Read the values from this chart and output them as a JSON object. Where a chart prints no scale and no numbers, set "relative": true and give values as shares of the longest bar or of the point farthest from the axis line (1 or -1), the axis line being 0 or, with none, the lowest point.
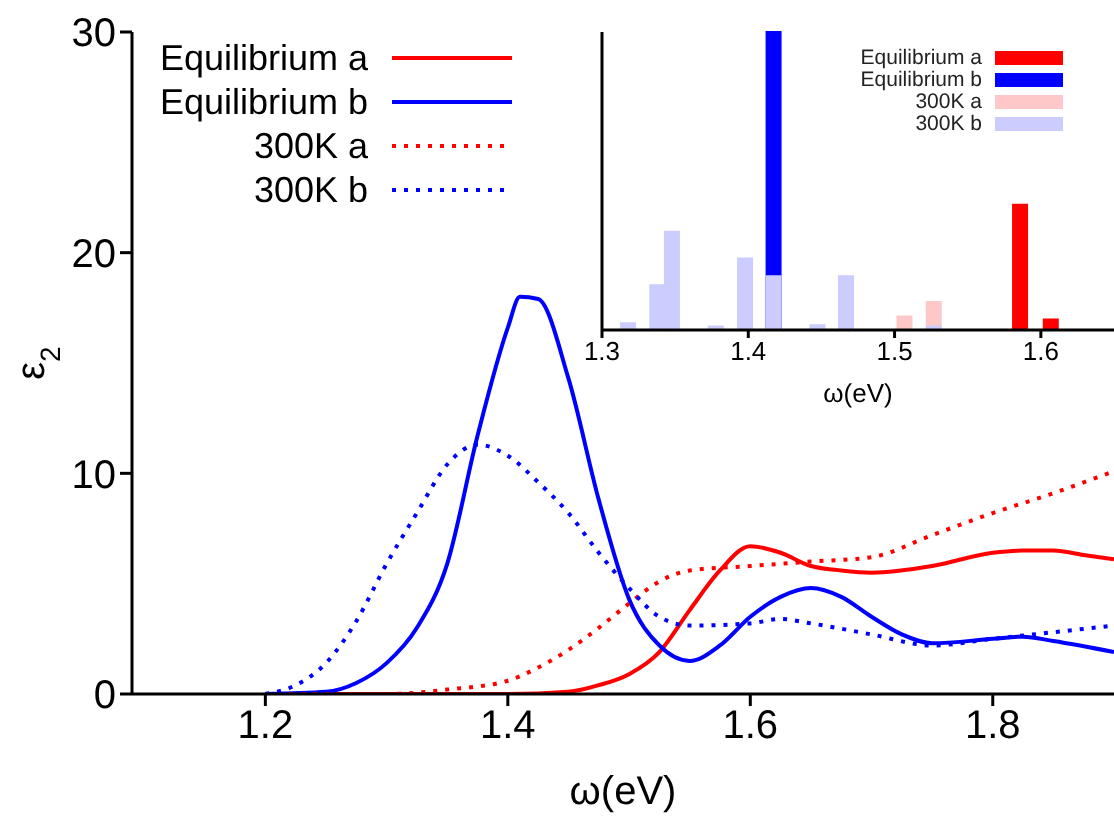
{
  "chart_data": [
    {
      "type": "line",
      "xlabel": "ω(eV)",
      "ylabel": "ε$_{2}$",
      "xlim": [
        1.09,
        1.9
      ],
      "xticks": [
        1.2,
        1.4,
        1.6,
        1.8
      ],
      "ylim": [
        0,
        30
      ],
      "yticks": [
        0,
        10,
        20,
        30
      ],
      "grid": false,
      "legend": "top left",
      "marker": "none",
      "series": [
        {
          "name": "Equilibrium a",
          "color": "#ff0000",
          "line_style": "solid",
          "x": [
            1.2,
            1.3,
            1.4,
            1.45,
            1.475,
            1.5,
            1.525,
            1.55,
            1.575,
            1.6,
            1.625,
            1.65,
            1.675,
            1.7,
            1.75,
            1.8,
            1.825,
            1.85,
            1.875,
            1.9
          ],
          "values": [
            0,
            0,
            0,
            0.1,
            0.4,
            0.9,
            1.9,
            3.8,
            5.6,
            6.7,
            6.4,
            5.8,
            5.6,
            5.5,
            5.8,
            6.4,
            6.5,
            6.5,
            6.3,
            6.1
          ]
        },
        {
          "name": "Equilibrium b",
          "color": "#0000ff",
          "line_style": "solid",
          "x": [
            1.2,
            1.25,
            1.275,
            1.3,
            1.325,
            1.35,
            1.375,
            1.4,
            1.41,
            1.425,
            1.45,
            1.475,
            1.5,
            1.525,
            1.55,
            1.575,
            1.6,
            1.625,
            1.65,
            1.675,
            1.7,
            1.725,
            1.75,
            1.8,
            1.825,
            1.85,
            1.9
          ],
          "values": [
            0,
            0.1,
            0.5,
            1.4,
            3.0,
            5.9,
            11.7,
            16.6,
            18.0,
            17.9,
            14.3,
            8.8,
            4.3,
            2.2,
            1.5,
            2.2,
            3.5,
            4.4,
            4.8,
            4.4,
            3.5,
            2.7,
            2.3,
            2.5,
            2.6,
            2.4,
            1.9
          ]
        },
        {
          "name": "300K a",
          "color": "#ff0000",
          "line_style": "dotted",
          "x": [
            1.2,
            1.3,
            1.35,
            1.4,
            1.425,
            1.45,
            1.475,
            1.5,
            1.525,
            1.55,
            1.6,
            1.65,
            1.7,
            1.75,
            1.8,
            1.85,
            1.9
          ],
          "values": [
            0,
            0,
            0.2,
            0.6,
            1.2,
            2.0,
            3.0,
            4.1,
            5.1,
            5.6,
            5.8,
            6.0,
            6.2,
            7.2,
            8.2,
            9.1,
            10.1
          ]
        },
        {
          "name": "300K b",
          "color": "#0000ff",
          "line_style": "dotted",
          "x": [
            1.2,
            1.225,
            1.25,
            1.275,
            1.3,
            1.325,
            1.35,
            1.375,
            1.4,
            1.425,
            1.45,
            1.475,
            1.5,
            1.525,
            1.55,
            1.6,
            1.625,
            1.65,
            1.7,
            1.75,
            1.8,
            1.85,
            1.9
          ],
          "values": [
            0,
            0.4,
            1.4,
            3.3,
            5.9,
            8.2,
            10.4,
            11.3,
            10.8,
            9.6,
            8.2,
            6.4,
            4.8,
            3.5,
            3.1,
            3.2,
            3.4,
            3.2,
            2.7,
            2.2,
            2.5,
            2.8,
            3.1
          ]
        }
      ]
    },
    {
      "type": "bar",
      "relative": true,
      "xlabel": "ω(eV)",
      "xlim": [
        1.3,
        1.65
      ],
      "xticks": [
        1.3,
        1.4,
        1.5,
        1.6
      ],
      "legend": "top right",
      "x": [
        1.318,
        1.338,
        1.348,
        1.378,
        1.398,
        1.4175,
        1.4475,
        1.467,
        1.507,
        1.527,
        1.586,
        1.607
      ],
      "series": [
        {
          "name": "Equilibrium a",
          "color": "#ff0000",
          "values": [
            null,
            null,
            null,
            null,
            null,
            null,
            null,
            null,
            null,
            null,
            0.42,
            0.035
          ]
        },
        {
          "name": "Equilibrium b",
          "color": "#0000ff",
          "values": [
            null,
            null,
            null,
            null,
            null,
            1.0,
            null,
            null,
            null,
            null,
            null,
            null
          ]
        },
        {
          "name": "300K a",
          "color": "#ffc8c8",
          "values": [
            null,
            null,
            null,
            null,
            null,
            null,
            null,
            null,
            0.045,
            0.094,
            null,
            null
          ]
        },
        {
          "name": "300K b",
          "color": "#ccccff",
          "values": [
            0.023,
            0.15,
            0.33,
            0.012,
            0.24,
            0.18,
            0.016,
            0.18,
            null,
            0.012,
            null,
            null
          ]
        }
      ]
    }
  ]
}
